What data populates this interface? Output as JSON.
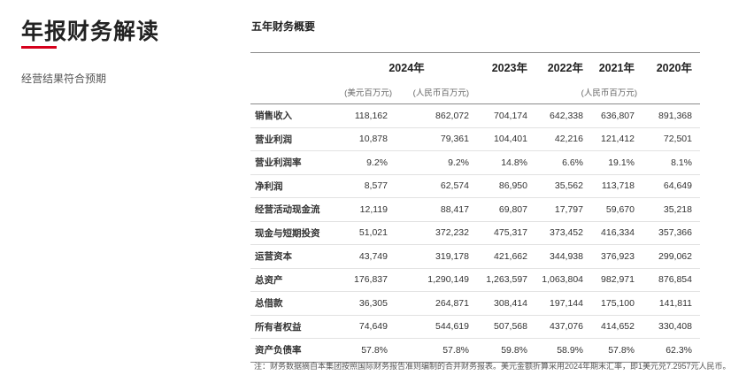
{
  "left": {
    "title": "年报财务解读",
    "subtitle": "经营结果符合预期",
    "accent_color": "#d6001c"
  },
  "table": {
    "title": "五年财务概要",
    "header": {
      "year_2024": "2024年",
      "year_2023": "2023年",
      "year_2022": "2022年",
      "year_2021": "2021年",
      "year_2020": "2020年",
      "unit_usd": "(美元百万元)",
      "unit_rmb_2024": "(人民币百万元)",
      "unit_rmb_other": "(人民币百万元)"
    },
    "rows": [
      {
        "label": "销售收入",
        "usd2024": "118,162",
        "rmb2024": "862,072",
        "y2023": "704,174",
        "y2022": "642,338",
        "y2021": "636,807",
        "y2020": "891,368"
      },
      {
        "label": "营业利润",
        "usd2024": "10,878",
        "rmb2024": "79,361",
        "y2023": "104,401",
        "y2022": "42,216",
        "y2021": "121,412",
        "y2020": "72,501"
      },
      {
        "label": "营业利润率",
        "usd2024": "9.2%",
        "rmb2024": "9.2%",
        "y2023": "14.8%",
        "y2022": "6.6%",
        "y2021": "19.1%",
        "y2020": "8.1%"
      },
      {
        "label": "净利润",
        "usd2024": "8,577",
        "rmb2024": "62,574",
        "y2023": "86,950",
        "y2022": "35,562",
        "y2021": "113,718",
        "y2020": "64,649"
      },
      {
        "label": "经营活动现金流",
        "usd2024": "12,119",
        "rmb2024": "88,417",
        "y2023": "69,807",
        "y2022": "17,797",
        "y2021": "59,670",
        "y2020": "35,218"
      },
      {
        "label": "现金与短期投资",
        "usd2024": "51,021",
        "rmb2024": "372,232",
        "y2023": "475,317",
        "y2022": "373,452",
        "y2021": "416,334",
        "y2020": "357,366"
      },
      {
        "label": "运营资本",
        "usd2024": "43,749",
        "rmb2024": "319,178",
        "y2023": "421,662",
        "y2022": "344,938",
        "y2021": "376,923",
        "y2020": "299,062"
      },
      {
        "label": "总资产",
        "usd2024": "176,837",
        "rmb2024": "1,290,149",
        "y2023": "1,263,597",
        "y2022": "1,063,804",
        "y2021": "982,971",
        "y2020": "876,854"
      },
      {
        "label": "总借款",
        "usd2024": "36,305",
        "rmb2024": "264,871",
        "y2023": "308,414",
        "y2022": "197,144",
        "y2021": "175,100",
        "y2020": "141,811"
      },
      {
        "label": "所有者权益",
        "usd2024": "74,649",
        "rmb2024": "544,619",
        "y2023": "507,568",
        "y2022": "437,076",
        "y2021": "414,652",
        "y2020": "330,408"
      },
      {
        "label": "资产负债率",
        "usd2024": "57.8%",
        "rmb2024": "57.8%",
        "y2023": "59.8%",
        "y2022": "58.9%",
        "y2021": "57.8%",
        "y2020": "62.3%"
      }
    ],
    "footnote": "注：财务数据摘自本集团按照国际财务报告准则编制的合并财务报表。美元金额折算采用2024年期末汇率，即1美元兑7.2957元人民币。"
  }
}
